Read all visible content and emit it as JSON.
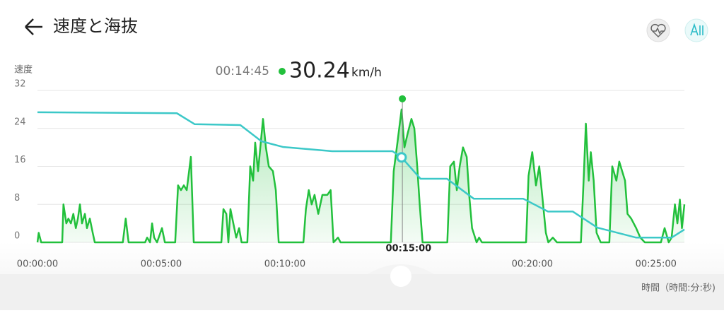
{
  "header": {
    "title": "速度と海抜"
  },
  "chart_data": {
    "type": "line",
    "ylabel": "速度",
    "readout": {
      "time": {
        "value": 885,
        "label": "00:14:45"
      },
      "value": 30.24,
      "unit": "km/h"
    },
    "xlabel": "時間（時間:分:秒)",
    "xlim": [
      0,
      1569
    ],
    "ylim": [
      0,
      32
    ],
    "yticks": [
      0,
      8,
      16,
      24,
      32
    ],
    "grid": true,
    "xticks": [
      {
        "value": 0,
        "label": "00:00:00"
      },
      {
        "value": 300,
        "label": "00:05:00"
      },
      {
        "value": 600,
        "label": "00:10:00"
      },
      {
        "value": 900,
        "label": "00:15:00"
      },
      {
        "value": 1200,
        "label": "00:20:00"
      },
      {
        "value": 1500,
        "label": "00:25:00"
      }
    ],
    "series": [
      {
        "color": "#22c03c",
        "fill": true,
        "x": [
          0,
          3,
          9,
          60,
          63,
          70,
          75,
          81,
          87,
          93,
          98,
          103,
          108,
          115,
          120,
          127,
          134,
          139,
          207,
          214,
          221,
          261,
          266,
          273,
          278,
          283,
          290,
          302,
          309,
          334,
          341,
          348,
          355,
          362,
          372,
          379,
          446,
          451,
          458,
          463,
          468,
          475,
          482,
          489,
          495,
          509,
          516,
          523,
          528,
          535,
          547,
          554,
          561,
          571,
          578,
          585,
          645,
          651,
          658,
          665,
          672,
          681,
          691,
          703,
          711,
          718,
          729,
          735,
          857,
          864,
          873,
          883,
          890,
          898,
          907,
          914,
          921,
          927,
          934,
          994,
          1001,
          1010,
          1017,
          1024,
          1032,
          1041,
          1047,
          1054,
          1065,
          1071,
          1078,
          1185,
          1191,
          1200,
          1209,
          1217,
          1224,
          1233,
          1239,
          1250,
          1260,
          1318,
          1325,
          1330,
          1337,
          1342,
          1349,
          1356,
          1366,
          1387,
          1394,
          1404,
          1411,
          1418,
          1425,
          1431,
          1440,
          1452,
          1462,
          1473,
          1512,
          1521,
          1531,
          1538,
          1546,
          1552,
          1558,
          1563,
          1569
        ],
        "values": [
          0,
          2,
          0,
          0,
          8,
          4,
          5,
          4,
          6,
          3,
          5,
          8,
          4,
          6,
          3,
          5,
          2,
          0,
          0,
          5,
          0,
          0,
          1,
          0,
          4,
          1,
          0,
          3,
          0,
          0,
          12,
          11,
          12,
          11,
          18,
          0,
          0,
          7,
          6,
          0,
          7,
          4,
          1,
          3,
          0,
          0,
          16,
          13,
          21,
          15,
          26,
          20,
          16,
          15,
          11,
          0,
          0,
          7,
          11,
          8,
          10,
          6,
          10,
          10,
          11,
          0,
          1,
          0,
          0,
          15,
          21,
          28,
          20,
          23,
          26,
          24,
          16,
          8,
          0,
          0,
          16,
          17,
          11,
          16,
          20,
          18,
          10,
          3,
          0,
          1,
          0,
          0,
          14,
          19,
          12,
          16,
          10,
          2,
          0,
          1,
          0,
          0,
          14,
          25,
          13,
          19,
          13,
          2,
          0,
          0,
          16,
          13,
          17,
          15,
          13,
          6,
          5,
          3,
          1,
          0,
          0,
          3,
          0,
          1,
          8,
          4,
          9,
          3,
          8
        ]
      },
      {
        "color": "#3cc8c8",
        "x": [
          0,
          338,
          381,
          492,
          543,
          595,
          715,
          861,
          883,
          929,
          993,
          1058,
          1178,
          1238,
          1298,
          1358,
          1452,
          1538,
          1569
        ],
        "values": [
          27.4,
          27.2,
          24.9,
          24.7,
          21.3,
          20.1,
          19.2,
          19.2,
          17.9,
          13.4,
          13.4,
          9.2,
          9.2,
          6.5,
          6.5,
          3.1,
          1.0,
          1.0,
          2.7
        ]
      }
    ]
  }
}
